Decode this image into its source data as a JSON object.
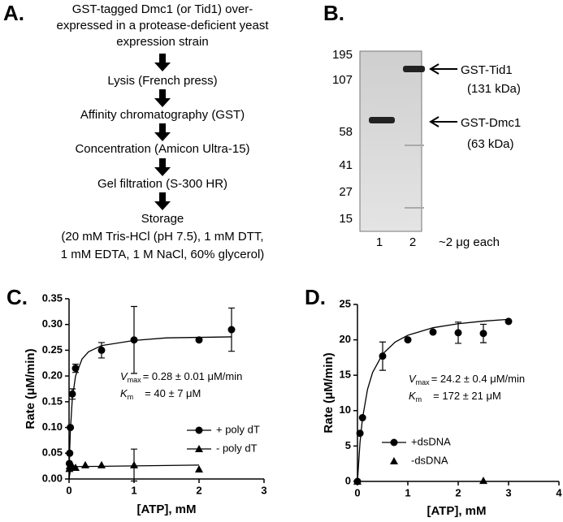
{
  "panel_a": {
    "label": "A.",
    "steps": [
      [
        "GST-tagged Dmc1 (or Tid1) over-",
        "expressed in a protease-deficient yeast",
        "expression strain"
      ],
      [
        "Lysis (French press)"
      ],
      [
        "Affinity chromatography (GST)"
      ],
      [
        "Concentration (Amicon Ultra-15)"
      ],
      [
        "Gel filtration (S-300 HR)"
      ],
      [
        "Storage",
        "(20 mM Tris-HCl (pH 7.5), 1 mM DTT,",
        "1 mM EDTA, 1 M NaCl, 60% glycerol)"
      ]
    ]
  },
  "panel_b": {
    "label": "B.",
    "markers": [
      "195",
      "107",
      "58",
      "41",
      "27",
      "15"
    ],
    "lanes": [
      "1",
      "2"
    ],
    "lane_note": "~2 μg each",
    "bands": [
      {
        "name": "GST-Tid1",
        "size": "(131 kDa)"
      },
      {
        "name": "GST-Dmc1",
        "size": "(63 kDa)"
      }
    ]
  },
  "chart_data": [
    {
      "type": "scatter",
      "label": "C.",
      "xlabel": "[ATP], mM",
      "ylabel": "Rate (μM/min)",
      "xlim": [
        0,
        3
      ],
      "xticks": [
        0,
        1,
        2,
        3
      ],
      "ylim": [
        0,
        0.35
      ],
      "yticks": [
        {
          "value": 0,
          "label": "0.00"
        },
        0.05,
        {
          "value": 0.1,
          "label": "0.10"
        },
        0.15,
        {
          "value": 0.2,
          "label": "0.20"
        },
        0.25,
        {
          "value": 0.3,
          "label": "0.30"
        },
        0.35
      ],
      "series": [
        {
          "name": "+ poly dT",
          "color": "#000000",
          "marker": "circle",
          "x": [
            0.005,
            0.01,
            0.02,
            0.05,
            0.1,
            0.5,
            1,
            2,
            2.5
          ],
          "values": [
            0.03,
            0.05,
            0.1,
            0.165,
            0.215,
            0.25,
            0.27,
            0.27,
            0.29
          ],
          "errors": [
            null,
            null,
            null,
            0.01,
            0.008,
            0.015,
            0.065,
            null,
            0.042
          ],
          "fit": {
            "x": [
              0,
              0.01,
              0.02,
              0.05,
              0.1,
              0.2,
              0.3,
              0.5,
              1,
              1.5,
              2,
              2.5
            ],
            "values": [
              0,
              0.056,
              0.093,
              0.156,
              0.2,
              0.233,
              0.247,
              0.259,
              0.269,
              0.274,
              0.275,
              0.276
            ]
          }
        },
        {
          "name": "- poly dT",
          "color": "#000000",
          "marker": "triangle",
          "x": [
            0.005,
            0.01,
            0.05,
            0.1,
            0.25,
            0.5,
            1,
            2
          ],
          "values": [
            0.02,
            0.025,
            0.025,
            0.022,
            0.027,
            0.027,
            0.027,
            0.019
          ],
          "errors": [
            null,
            null,
            null,
            null,
            null,
            null,
            0.031,
            null
          ],
          "fit": {
            "x": [
              0,
              0.02,
              0.05,
              0.1,
              2
            ],
            "values": [
              0,
              0.017,
              0.022,
              0.024,
              0.027
            ]
          }
        }
      ],
      "annotations": [
        {
          "symbol": "V",
          "sub": "max",
          "text": "= 0.28 ± 0.01 μM/min"
        },
        {
          "symbol": "K",
          "sub": "m",
          "text": "= 40 ± 7 μM"
        }
      ]
    },
    {
      "type": "scatter",
      "label": "D.",
      "xlabel": "[ATP], mM",
      "ylabel": "Rate (μM/min)",
      "xlim": [
        0,
        4
      ],
      "xticks": [
        0,
        1,
        2,
        3,
        4
      ],
      "ylim": [
        0,
        25
      ],
      "yticks": [
        0,
        5,
        10,
        15,
        20,
        25
      ],
      "series": [
        {
          "name": "+dsDNA",
          "color": "#000000",
          "marker": "circle",
          "x": [
            0,
            0.05,
            0.1,
            0.5,
            1,
            1.5,
            2,
            2.5,
            3
          ],
          "values": [
            0,
            6.8,
            9,
            17.7,
            20,
            21.1,
            21,
            20.9,
            22.6
          ],
          "errors": [
            null,
            null,
            null,
            2,
            null,
            null,
            1.5,
            1.3,
            null
          ],
          "fit": {
            "x": [
              0,
              0.05,
              0.1,
              0.2,
              0.3,
              0.5,
              0.75,
              1,
              1.5,
              2,
              2.5,
              3
            ],
            "values": [
              0,
              5.45,
              8.9,
              13.01,
              15.38,
              18,
              19.69,
              20.65,
              21.71,
              22.28,
              22.64,
              22.89
            ]
          }
        },
        {
          "name": "-dsDNA",
          "color": "#000000",
          "marker": "triangle",
          "x": [
            0,
            2.5
          ],
          "values": [
            0,
            0.1
          ],
          "errors": [
            null,
            null
          ]
        }
      ],
      "annotations": [
        {
          "symbol": "V",
          "sub": "max",
          "text": "= 24.2 ± 0.4 μM/min"
        },
        {
          "symbol": "K",
          "sub": "m",
          "text": "= 172 ± 21 μM"
        }
      ]
    }
  ]
}
